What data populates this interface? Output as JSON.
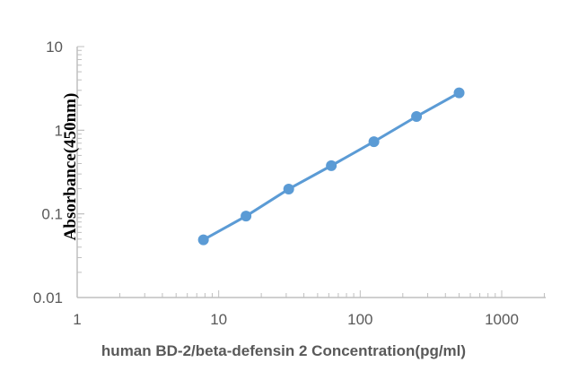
{
  "chart_data": {
    "type": "line",
    "title": "",
    "xlabel": "human BD-2/beta-defensin 2 Concentration(pg/ml)",
    "ylabel": "Absorbance(450nm)",
    "xscale": "log",
    "yscale": "log",
    "xlim": [
      1,
      1000
    ],
    "ylim": [
      0.01,
      10
    ],
    "x_ticks": [
      "1",
      "10",
      "100",
      "1000"
    ],
    "y_ticks": [
      "0.01",
      "0.1",
      "1",
      "10"
    ],
    "grid": false,
    "legend": "none",
    "series": [
      {
        "color": "#5b9bd5",
        "marker": "circle",
        "x": [
          7.8,
          15.6,
          31.25,
          62.5,
          125,
          250,
          500
        ],
        "y": [
          0.049,
          0.094,
          0.198,
          0.377,
          0.73,
          1.46,
          2.8
        ]
      }
    ]
  }
}
